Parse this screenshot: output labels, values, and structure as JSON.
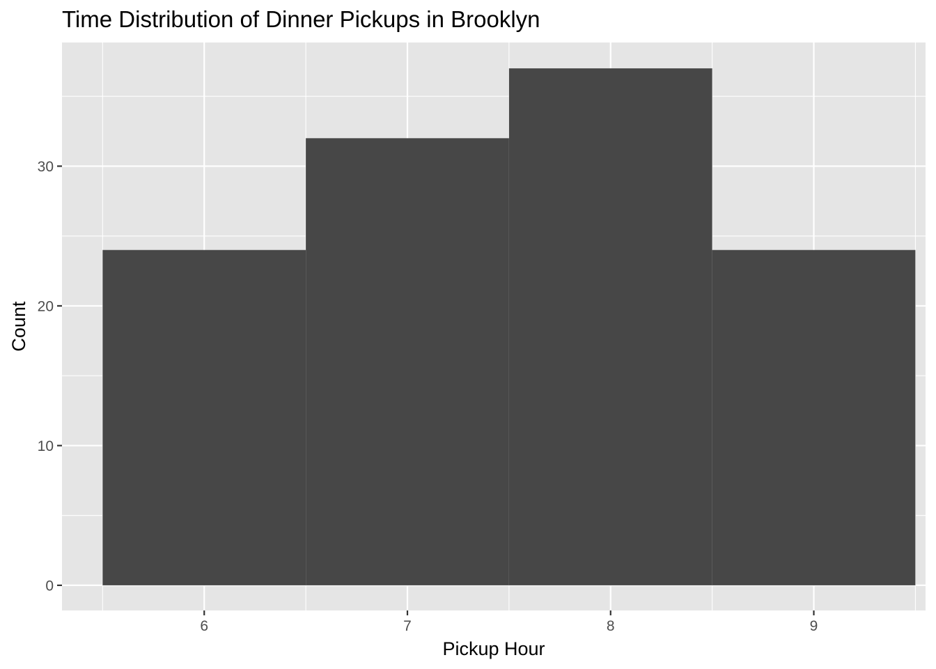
{
  "chart_data": {
    "type": "bar",
    "title": "Time Distribution of Dinner Pickups in Brooklyn",
    "xlabel": "Pickup Hour",
    "ylabel": "Count",
    "categories": [
      "6",
      "7",
      "8",
      "9"
    ],
    "x": [
      6,
      7,
      8,
      9
    ],
    "bin_width": 1,
    "values": [
      24,
      32,
      37,
      24
    ],
    "xlim": [
      5.3,
      9.55
    ],
    "ylim": [
      -1.8,
      38.85
    ],
    "x_ticks": [
      6,
      7,
      8,
      9
    ],
    "y_ticks": [
      0,
      10,
      20,
      30
    ],
    "grid": true,
    "legend": "none",
    "colors": {
      "panel_background": "#e5e5e5",
      "grid_line": "#ffffff",
      "bar_fill": "#474747",
      "tick_text": "#4d4d4d",
      "tick_mark": "#333333",
      "title_text": "#000000"
    }
  }
}
